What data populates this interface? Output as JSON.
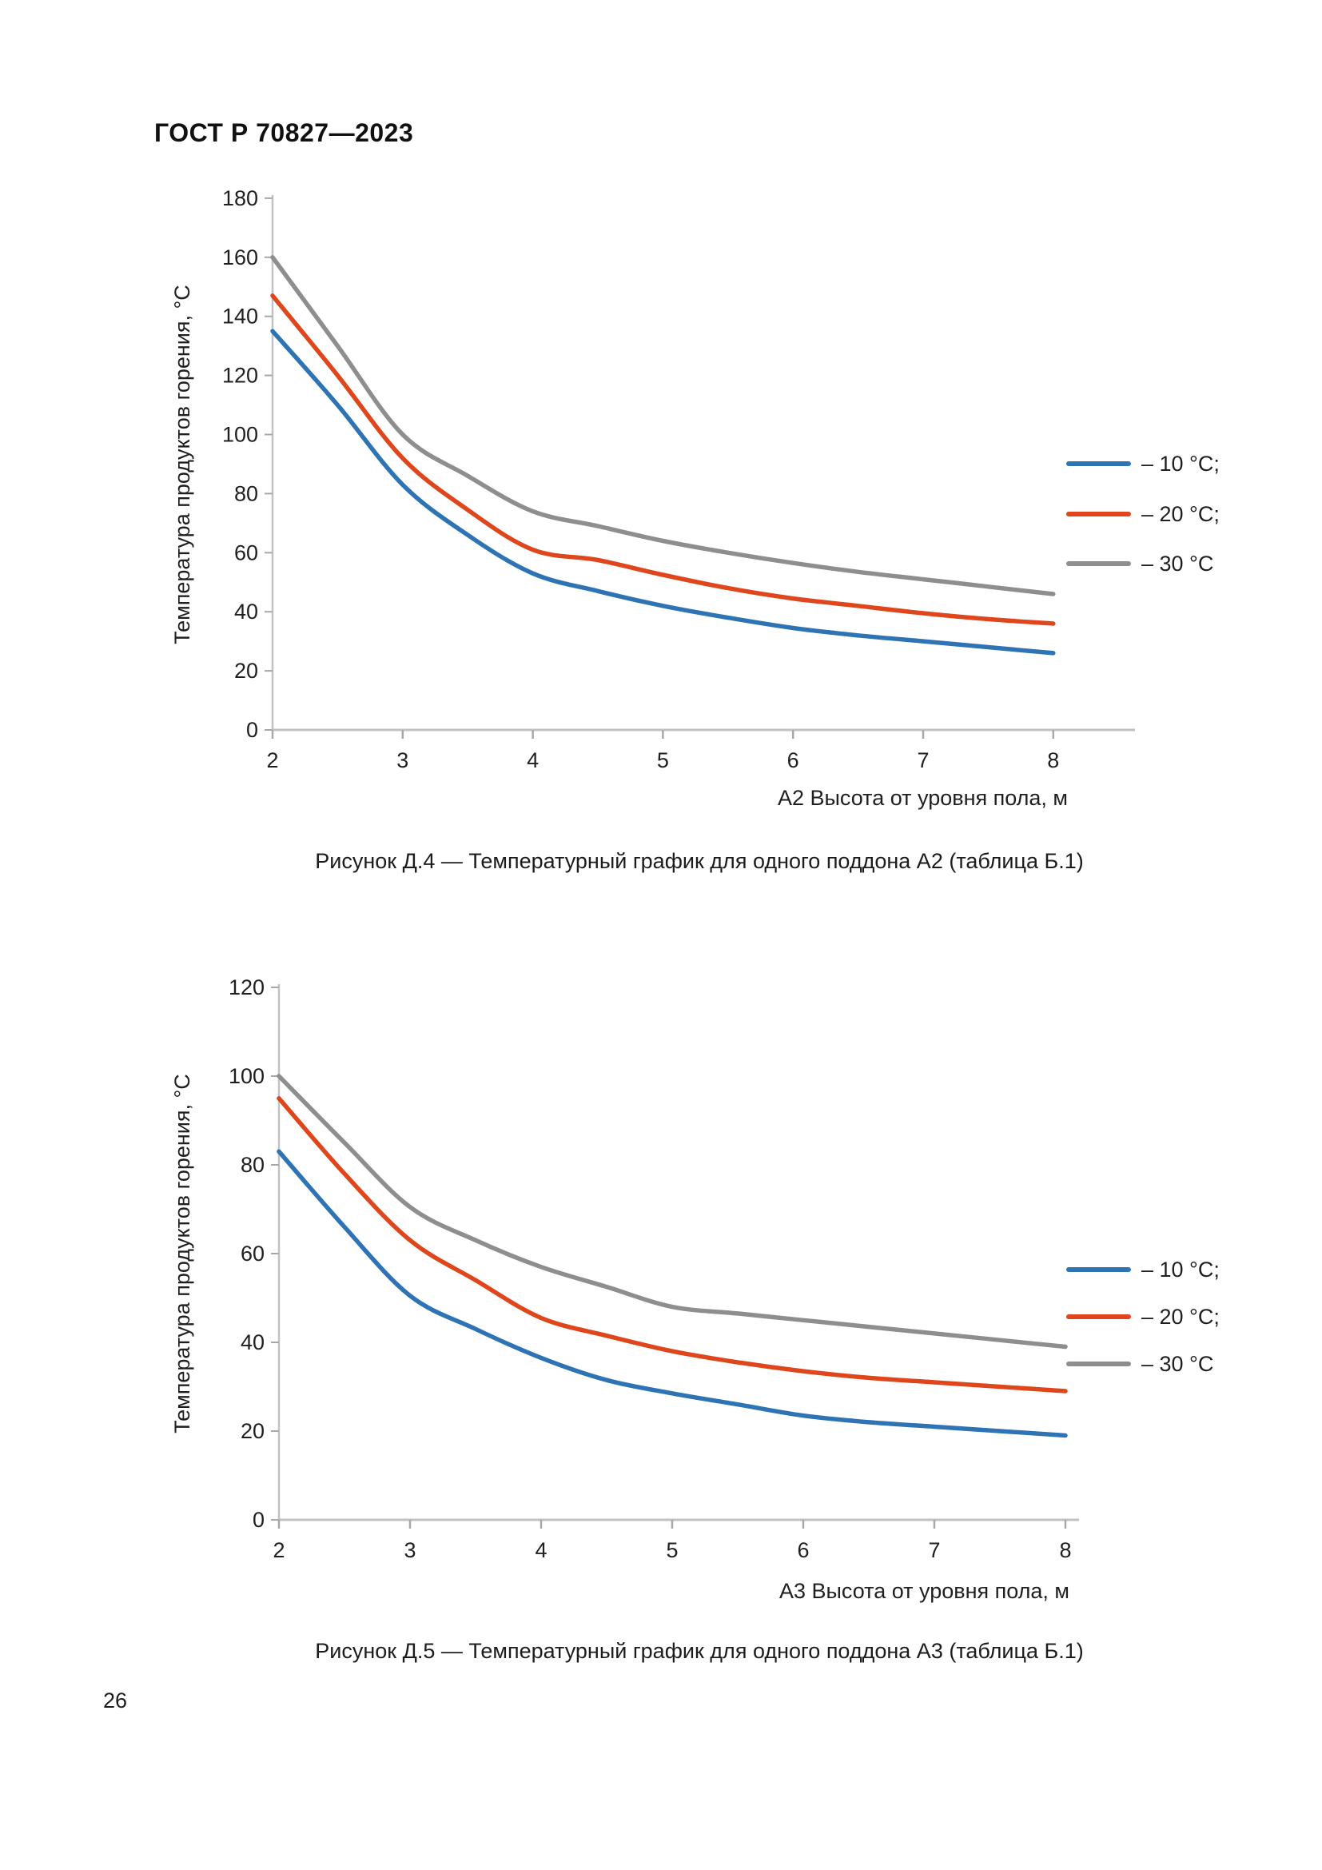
{
  "page": {
    "header": "ГОСТ Р 70827—2023",
    "page_number": "26"
  },
  "colors": {
    "series_10c": "#2E74B5",
    "series_20c": "#E0461C",
    "series_30c": "#8E8E8E",
    "axis": "#C2C2C2",
    "tick": "#A8A8A8",
    "text": "#1F1F1F"
  },
  "chart_data": [
    {
      "type": "line",
      "title": "",
      "x": [
        2,
        2.5,
        3,
        3.5,
        4,
        4.5,
        5,
        5.5,
        6,
        6.5,
        7,
        7.5,
        8
      ],
      "x_ticks": [
        2,
        3,
        4,
        5,
        6,
        7,
        8
      ],
      "series": [
        {
          "name": "– 10 °С;",
          "color": "#2E74B5",
          "values": [
            135,
            110,
            83,
            66,
            53,
            47,
            42,
            38,
            34.5,
            32,
            30,
            28,
            26
          ]
        },
        {
          "name": "– 20 °С;",
          "color": "#E0461C",
          "values": [
            147,
            120,
            92,
            74.5,
            61,
            57.5,
            52.5,
            48,
            44.5,
            42,
            39.5,
            37.5,
            36
          ]
        },
        {
          "name": "– 30 °С",
          "color": "#8E8E8E",
          "values": [
            160,
            130,
            100,
            86,
            74,
            69,
            64,
            60,
            56.5,
            53.5,
            51,
            48.5,
            46
          ]
        }
      ],
      "xlabel": "А2 Высота от уровня пола, м",
      "ylabel": "Температура продуктов горения, °С",
      "xlim": [
        2,
        8
      ],
      "ylim": [
        0,
        180
      ],
      "ytick_step": 20,
      "grid": false,
      "legend_position": "right",
      "caption": "Рисунок Д.4 — Температурный график для одного поддона А2 (таблица Б.1)"
    },
    {
      "type": "line",
      "title": "",
      "x": [
        2,
        2.5,
        3,
        3.5,
        4,
        4.5,
        5,
        5.5,
        6,
        6.5,
        7,
        7.5,
        8
      ],
      "x_ticks": [
        2,
        3,
        4,
        5,
        6,
        7,
        8
      ],
      "series": [
        {
          "name": "– 10 °С;",
          "color": "#2E74B5",
          "values": [
            83,
            66,
            50.5,
            43,
            36.5,
            31.5,
            28.5,
            26,
            23.5,
            22,
            21,
            20,
            19
          ]
        },
        {
          "name": "– 20 °С;",
          "color": "#E0461C",
          "values": [
            95,
            78,
            63,
            54,
            45.5,
            41.5,
            38,
            35.5,
            33.5,
            32,
            31,
            30,
            29
          ]
        },
        {
          "name": "– 30 °С",
          "color": "#8E8E8E",
          "values": [
            100,
            85,
            70.5,
            63,
            57,
            52.5,
            48,
            46.5,
            45,
            43.5,
            42,
            40.5,
            39
          ]
        }
      ],
      "xlabel": "А3 Высота от уровня пола, м",
      "ylabel": "Температура продуктов горения, °С",
      "xlim": [
        2,
        8
      ],
      "ylim": [
        0,
        120
      ],
      "ytick_step": 20,
      "grid": false,
      "legend_position": "right",
      "caption": "Рисунок Д.5 — Температурный график для одного поддона А3 (таблица Б.1)"
    }
  ]
}
